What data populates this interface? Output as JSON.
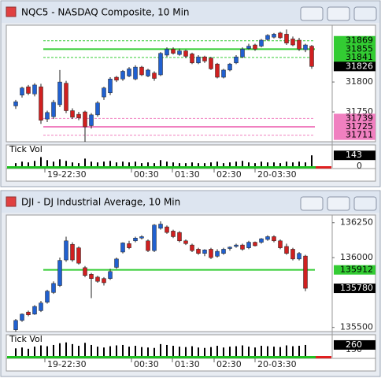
{
  "windows": [
    {
      "title": "NQC5 - NASDAQ Composite, 10 Min",
      "chart_data": {
        "type": "candlestick",
        "candles": [
          [
            31760,
            31770,
            31755,
            31767
          ],
          [
            31778,
            31792,
            31774,
            31790
          ],
          [
            31792,
            31795,
            31778,
            31781
          ],
          [
            31780,
            31798,
            31776,
            31795
          ],
          [
            31792,
            31797,
            31730,
            31736
          ],
          [
            31738,
            31752,
            31733,
            31749
          ],
          [
            31742,
            31770,
            31738,
            31766
          ],
          [
            31762,
            31820,
            31758,
            31800
          ],
          [
            31798,
            31802,
            31748,
            31752
          ],
          [
            31752,
            31756,
            31738,
            31741
          ],
          [
            31746,
            31750,
            31736,
            31740
          ],
          [
            31750,
            31752,
            31700,
            31725
          ],
          [
            31727,
            31748,
            31722,
            31745
          ],
          [
            31745,
            31768,
            31742,
            31765
          ],
          [
            31775,
            31792,
            31770,
            31790
          ],
          [
            31782,
            31808,
            31778,
            31805
          ],
          [
            31808,
            31810,
            31800,
            31803
          ],
          [
            31805,
            31820,
            31802,
            31818
          ],
          [
            31810,
            31825,
            31808,
            31822
          ],
          [
            31805,
            31828,
            31803,
            31825
          ],
          [
            31825,
            31827,
            31810,
            31812
          ],
          [
            31810,
            31822,
            31808,
            31820
          ],
          [
            31815,
            31818,
            31802,
            31806
          ],
          [
            31812,
            31850,
            31810,
            31848
          ],
          [
            31845,
            31858,
            31842,
            31855
          ],
          [
            31855,
            31858,
            31846,
            31848
          ],
          [
            31846,
            31856,
            31844,
            31852
          ],
          [
            31852,
            31854,
            31840,
            31843
          ],
          [
            31847,
            31849,
            31830,
            31832
          ],
          [
            31832,
            31845,
            31830,
            31842
          ],
          [
            31842,
            31844,
            31832,
            31835
          ],
          [
            31840,
            31842,
            31820,
            31822
          ],
          [
            31830,
            31832,
            31806,
            31808
          ],
          [
            31808,
            31822,
            31806,
            31820
          ],
          [
            31820,
            31832,
            31818,
            31830
          ],
          [
            31832,
            31845,
            31830,
            31842
          ],
          [
            31842,
            31858,
            31840,
            31855
          ],
          [
            31856,
            31864,
            31854,
            31860
          ],
          [
            31862,
            31864,
            31852,
            31855
          ],
          [
            31860,
            31872,
            31858,
            31870
          ],
          [
            31871,
            31880,
            31869,
            31878
          ],
          [
            31875,
            31882,
            31873,
            31880
          ],
          [
            31882,
            31884,
            31872,
            31874
          ],
          [
            31880,
            31888,
            31862,
            31865
          ],
          [
            31872,
            31876,
            31860,
            31862
          ],
          [
            31870,
            31874,
            31852,
            31855
          ],
          [
            31854,
            31864,
            31850,
            31862
          ],
          [
            31860,
            31862,
            31822,
            31826
          ]
        ],
        "ylim": [
          31700,
          31895
        ],
        "yticks": [
          31800,
          31750
        ],
        "levels": [
          {
            "value": 31869,
            "color": "#33cc33",
            "line": "dashed"
          },
          {
            "value": 31855,
            "color": "#33cc33",
            "line": "solid"
          },
          {
            "value": 31841,
            "color": "#33cc33",
            "line": "dashed"
          },
          {
            "value": 31826,
            "color": "#000000",
            "line": "none"
          },
          {
            "value": 31739,
            "color": "#f080c0",
            "line": "dashed"
          },
          {
            "value": 31725,
            "color": "#f080c0",
            "line": "solid"
          },
          {
            "value": 31711,
            "color": "#f080c0",
            "line": "dashed"
          }
        ],
        "x_labels": [
          "19-22:30",
          "00:30",
          "01:30",
          "02:30",
          "20-03:30"
        ],
        "volume": {
          "label": "Tick Vol",
          "values": [
            40,
            60,
            50,
            70,
            120,
            80,
            60,
            90,
            70,
            50,
            40,
            100,
            60,
            50,
            60,
            70,
            50,
            60,
            50,
            60,
            40,
            50,
            40,
            80,
            60,
            50,
            40,
            40,
            50,
            40,
            40,
            50,
            60,
            40,
            50,
            60,
            70,
            50,
            40,
            60,
            50,
            50,
            40,
            60,
            50,
            60,
            50,
            143
          ],
          "ylim": [
            0,
            280
          ],
          "yticks": [
            0
          ],
          "last": 143
        }
      }
    },
    {
      "title": "DJI - DJ Industrial Average, 10 Min",
      "chart_data": {
        "type": "candlestick",
        "candles": [
          [
            135483,
            135560,
            135470,
            135550
          ],
          [
            135550,
            135600,
            135540,
            135595
          ],
          [
            135610,
            135620,
            135580,
            135590
          ],
          [
            135595,
            135660,
            135590,
            135650
          ],
          [
            135620,
            135690,
            135610,
            135675
          ],
          [
            135680,
            135770,
            135670,
            135760
          ],
          [
            135750,
            135830,
            135740,
            135815
          ],
          [
            135800,
            136000,
            135790,
            135980
          ],
          [
            135983,
            136150,
            135970,
            136120
          ],
          [
            136095,
            136110,
            135970,
            135983
          ],
          [
            136070,
            136080,
            135950,
            135960
          ],
          [
            135928,
            135940,
            135860,
            135872
          ],
          [
            135880,
            135890,
            135710,
            135850
          ],
          [
            135860,
            135870,
            135820,
            135830
          ],
          [
            135850,
            135860,
            135800,
            135820
          ],
          [
            135850,
            135920,
            135840,
            135900
          ],
          [
            135930,
            136000,
            135920,
            135990
          ],
          [
            136040,
            136110,
            136030,
            136105
          ],
          [
            136100,
            136120,
            136060,
            136070
          ],
          [
            136120,
            136150,
            136110,
            136140
          ],
          [
            136140,
            136160,
            136130,
            136150
          ],
          [
            136120,
            136130,
            136040,
            136050
          ],
          [
            136050,
            136240,
            136040,
            136233
          ],
          [
            136210,
            136260,
            136200,
            136240
          ],
          [
            136220,
            136230,
            136170,
            136180
          ],
          [
            136190,
            136200,
            136140,
            136150
          ],
          [
            136180,
            136190,
            136110,
            136120
          ],
          [
            136120,
            136130,
            136090,
            136100
          ],
          [
            136090,
            136100,
            136040,
            136050
          ],
          [
            136060,
            136070,
            136020,
            136030
          ],
          [
            136030,
            136060,
            136010,
            136055
          ],
          [
            136060,
            136070,
            135990,
            136000
          ],
          [
            136010,
            136060,
            136000,
            136045
          ],
          [
            136030,
            136070,
            136020,
            136060
          ],
          [
            136065,
            136080,
            136050,
            136075
          ],
          [
            136080,
            136100,
            136070,
            136090
          ],
          [
            136090,
            136100,
            136050,
            136060
          ],
          [
            136070,
            136120,
            136060,
            136110
          ],
          [
            136110,
            136115,
            136080,
            136085
          ],
          [
            136110,
            136140,
            136100,
            136135
          ],
          [
            136130,
            136160,
            136120,
            136150
          ],
          [
            136150,
            136160,
            136110,
            136120
          ],
          [
            136120,
            136130,
            136060,
            136070
          ],
          [
            136080,
            136100,
            136020,
            136030
          ],
          [
            136060,
            136070,
            135980,
            135990
          ],
          [
            135990,
            136040,
            135980,
            136030
          ],
          [
            136011,
            136020,
            135760,
            135780
          ]
        ],
        "ylim": [
          135470,
          136305
        ],
        "yticks": [
          136250,
          136000,
          135500
        ],
        "levels": [
          {
            "value": 135912,
            "color": "#33cc33",
            "line": "solid"
          },
          {
            "value": 135780,
            "color": "#000000",
            "line": "none"
          }
        ],
        "x_labels": [
          "19-22:30",
          "00:30",
          "01:30",
          "02:30",
          "20-03:30"
        ],
        "volume": {
          "label": "Tick Vol",
          "values": [
            180,
            200,
            170,
            220,
            250,
            230,
            260,
            300,
            320,
            280,
            240,
            310,
            260,
            220,
            200,
            230,
            250,
            260,
            220,
            240,
            210,
            200,
            190,
            280,
            260,
            240,
            220,
            210,
            230,
            200,
            190,
            210,
            240,
            200,
            220,
            230,
            250,
            220,
            200,
            240,
            230,
            220,
            210,
            250,
            230,
            240,
            260
          ],
          "ylim": [
            0,
            500
          ],
          "yticks": [
            150
          ],
          "last": 260
        }
      }
    }
  ]
}
